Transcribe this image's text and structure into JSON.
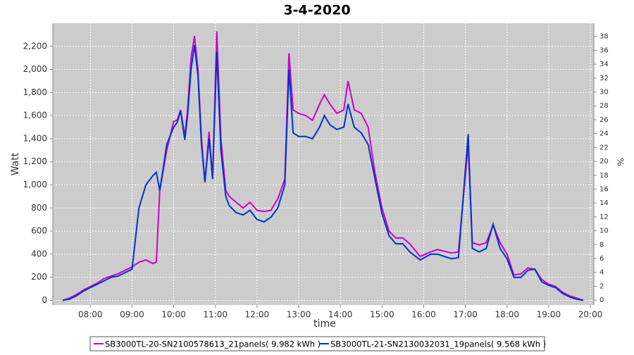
{
  "chart_data": {
    "type": "line",
    "title": "3-4-2020",
    "x_label": "time",
    "y_label": "Watt",
    "y2_label": "%",
    "x": [
      "07:20",
      "07:30",
      "07:40",
      "07:50",
      "08:00",
      "08:10",
      "08:20",
      "08:30",
      "08:40",
      "08:50",
      "09:00",
      "09:10",
      "09:20",
      "09:30",
      "09:35",
      "09:40",
      "09:50",
      "10:00",
      "10:05",
      "10:10",
      "10:16",
      "10:20",
      "10:25",
      "10:30",
      "10:35",
      "10:40",
      "10:45",
      "10:51",
      "10:56",
      "11:02",
      "11:08",
      "11:15",
      "11:20",
      "11:30",
      "11:40",
      "11:50",
      "12:00",
      "12:10",
      "12:20",
      "12:30",
      "12:40",
      "12:46",
      "12:52",
      "13:00",
      "13:10",
      "13:20",
      "13:30",
      "13:37",
      "13:45",
      "13:55",
      "14:05",
      "14:11",
      "14:20",
      "14:30",
      "14:40",
      "14:50",
      "15:00",
      "15:10",
      "15:20",
      "15:30",
      "15:40",
      "15:55",
      "16:10",
      "16:20",
      "16:40",
      "16:50",
      "17:04",
      "17:10",
      "17:20",
      "17:30",
      "17:40",
      "17:50",
      "18:00",
      "18:10",
      "18:20",
      "18:30",
      "18:40",
      "18:50",
      "19:00",
      "19:10",
      "19:20",
      "19:30",
      "19:40",
      "19:50"
    ],
    "series": [
      {
        "name": "SB3000TL-20-SN2100578613_21panels( 9.982 kWh )",
        "color": "#cc00cc",
        "values": [
          0,
          20,
          50,
          90,
          120,
          150,
          190,
          210,
          230,
          260,
          290,
          330,
          350,
          320,
          330,
          950,
          1300,
          1550,
          1560,
          1650,
          1420,
          1650,
          2100,
          2290,
          2000,
          1400,
          1020,
          1460,
          1050,
          2330,
          1400,
          950,
          900,
          850,
          800,
          850,
          780,
          770,
          780,
          880,
          1050,
          2140,
          1650,
          1620,
          1600,
          1560,
          1700,
          1780,
          1700,
          1620,
          1650,
          1900,
          1650,
          1620,
          1500,
          1100,
          800,
          600,
          540,
          540,
          490,
          380,
          420,
          440,
          410,
          420,
          1350,
          500,
          480,
          500,
          650,
          500,
          400,
          220,
          230,
          280,
          270,
          180,
          140,
          120,
          70,
          40,
          20,
          0
        ]
      },
      {
        "name": "SB3000TL-21-SN2130032031_19panels( 9.568 kWh )",
        "color": "#0033cc",
        "values": [
          0,
          10,
          40,
          80,
          110,
          140,
          170,
          200,
          210,
          240,
          270,
          800,
          1000,
          1080,
          1110,
          950,
          1350,
          1500,
          1540,
          1640,
          1390,
          1600,
          2000,
          2210,
          1950,
          1350,
          1030,
          1400,
          1050,
          2150,
          1300,
          900,
          820,
          760,
          740,
          780,
          700,
          680,
          720,
          800,
          1000,
          2000,
          1450,
          1420,
          1420,
          1400,
          1500,
          1600,
          1520,
          1480,
          1500,
          1700,
          1500,
          1450,
          1350,
          1050,
          750,
          560,
          490,
          490,
          420,
          350,
          400,
          400,
          360,
          370,
          1440,
          450,
          420,
          450,
          660,
          450,
          360,
          200,
          200,
          260,
          270,
          160,
          130,
          110,
          60,
          30,
          10,
          0
        ]
      }
    ],
    "xlim": [
      "07:06",
      "20:05"
    ],
    "xticks": [
      "08:00",
      "09:00",
      "10:00",
      "11:00",
      "12:00",
      "13:00",
      "14:00",
      "15:00",
      "16:00",
      "17:00",
      "18:00",
      "19:00",
      "20:00"
    ],
    "ylim": [
      -40,
      2400
    ],
    "yticks": [
      0,
      200,
      400,
      600,
      800,
      {
        "value": 1000,
        "label": "1,000"
      },
      {
        "value": 1200,
        "label": "1,200"
      },
      {
        "value": 1400,
        "label": "1,400"
      },
      {
        "value": 1600,
        "label": "1,600"
      },
      {
        "value": 1800,
        "label": "1,800"
      },
      {
        "value": 2000,
        "label": "2,000"
      },
      {
        "value": 2200,
        "label": "2,200"
      }
    ],
    "y2lim": [
      -0.7,
      39.9
    ],
    "y2ticks": [
      0,
      2,
      4,
      6,
      8,
      10,
      12,
      14,
      16,
      18,
      20,
      22,
      24,
      26,
      28,
      30,
      32,
      34,
      36,
      38
    ],
    "grid": true,
    "legend": "bottom"
  }
}
